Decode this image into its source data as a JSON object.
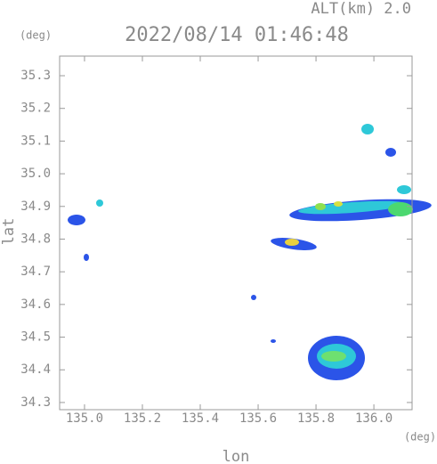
{
  "chart_data": {
    "type": "radar-map",
    "title": "2022/08/14 01:46:48",
    "altitude_label": "ALT(km) 2.0",
    "y_unit": "(deg)",
    "x_unit": "(deg)",
    "ylabel": "lat",
    "xlabel": "lon",
    "xlim": [
      134.914,
      136.132
    ],
    "ylim": [
      34.278,
      35.36
    ],
    "xticks": [
      {
        "value": 135,
        "label": "135.0"
      },
      135.2,
      135.4,
      135.6,
      135.8,
      {
        "value": 136,
        "label": "136.0"
      }
    ],
    "yticks": [
      34.3,
      34.4,
      34.5,
      34.6,
      34.7,
      34.8,
      34.9,
      {
        "value": 35,
        "label": "35.0"
      },
      35.1,
      35.2,
      35.3
    ]
  }
}
